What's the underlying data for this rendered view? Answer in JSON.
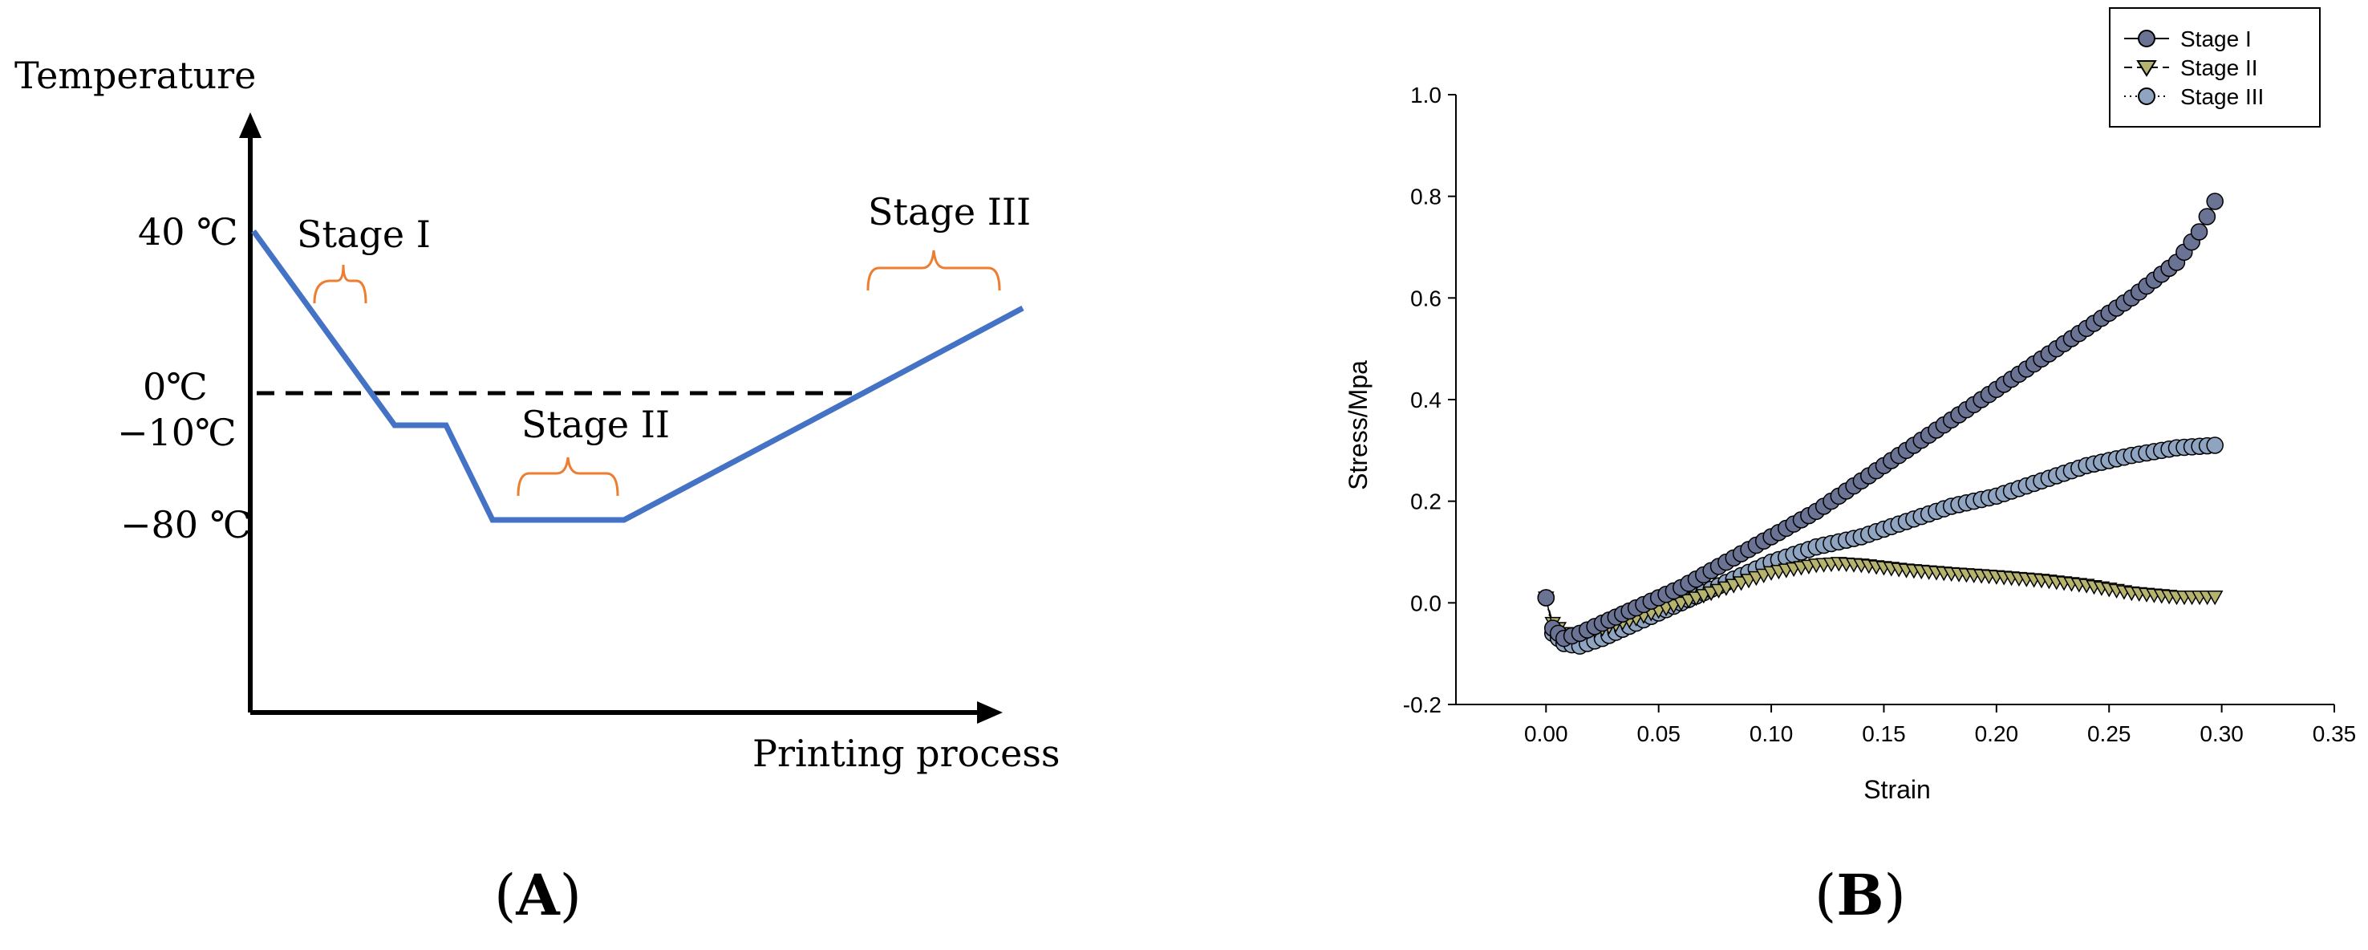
{
  "panel_a": {
    "label": "(A)",
    "chart_data": {
      "type": "line",
      "ylabel": "Temperature",
      "xlabel": "Printing process",
      "y_tick_labels": [
        "40 ℃",
        "0℃",
        "−10℃",
        "−80 ℃"
      ],
      "reference_line": "0℃",
      "profile_temperatures": [
        40,
        -10,
        -10,
        -80,
        -80,
        0,
        20
      ],
      "stage_labels": [
        "Stage I",
        "Stage II",
        "Stage III"
      ]
    },
    "colors": {
      "line": "#4472C4",
      "bracket": "#ED7D31",
      "axis": "#000000",
      "dashed": "#000000"
    }
  },
  "panel_b": {
    "label": "(B)",
    "chart_data": {
      "type": "scatter",
      "xlabel": "Strain",
      "ylabel": "Stress/Mpa",
      "xlim": [
        -0.04,
        0.35
      ],
      "ylim": [
        -0.2,
        1.0
      ],
      "x_ticks": [
        "0.00",
        "0.05",
        "0.10",
        "0.15",
        "0.20",
        "0.25",
        "0.30",
        "0.35"
      ],
      "y_ticks": [
        "-0.2",
        "0.0",
        "0.2",
        "0.4",
        "0.6",
        "0.8",
        "1.0"
      ],
      "legend_position": "top-right",
      "series": [
        {
          "name": "Stage I",
          "marker": "circle",
          "line_style": "solid",
          "color": "#6B7394",
          "x": [
            0.0,
            0.003,
            0.008,
            0.015,
            0.025,
            0.04,
            0.06,
            0.08,
            0.1,
            0.12,
            0.14,
            0.16,
            0.18,
            0.2,
            0.22,
            0.24,
            0.26,
            0.28,
            0.29,
            0.297
          ],
          "y": [
            0.01,
            -0.05,
            -0.07,
            -0.06,
            -0.04,
            -0.01,
            0.03,
            0.08,
            0.13,
            0.18,
            0.24,
            0.3,
            0.36,
            0.42,
            0.48,
            0.54,
            0.6,
            0.67,
            0.73,
            0.79
          ]
        },
        {
          "name": "Stage II",
          "marker": "triangle-down",
          "line_style": "dashed",
          "color": "#B5B36E",
          "x": [
            0.0,
            0.003,
            0.008,
            0.015,
            0.025,
            0.04,
            0.06,
            0.08,
            0.1,
            0.12,
            0.13,
            0.14,
            0.16,
            0.18,
            0.2,
            0.22,
            0.24,
            0.26,
            0.28,
            0.297
          ],
          "y": [
            0.01,
            -0.04,
            -0.06,
            -0.06,
            -0.05,
            -0.03,
            0.0,
            0.03,
            0.06,
            0.075,
            0.078,
            0.075,
            0.065,
            0.058,
            0.052,
            0.045,
            0.035,
            0.02,
            0.012,
            0.012
          ]
        },
        {
          "name": "Stage III",
          "marker": "circle",
          "line_style": "dotted",
          "color": "#8FA4C0",
          "x": [
            0.0,
            0.003,
            0.008,
            0.015,
            0.025,
            0.04,
            0.06,
            0.08,
            0.1,
            0.12,
            0.14,
            0.16,
            0.18,
            0.2,
            0.22,
            0.24,
            0.26,
            0.28,
            0.297
          ],
          "y": [
            0.01,
            -0.06,
            -0.08,
            -0.085,
            -0.07,
            -0.04,
            0.0,
            0.04,
            0.08,
            0.11,
            0.13,
            0.16,
            0.19,
            0.21,
            0.24,
            0.27,
            0.29,
            0.305,
            0.31
          ]
        }
      ]
    }
  }
}
